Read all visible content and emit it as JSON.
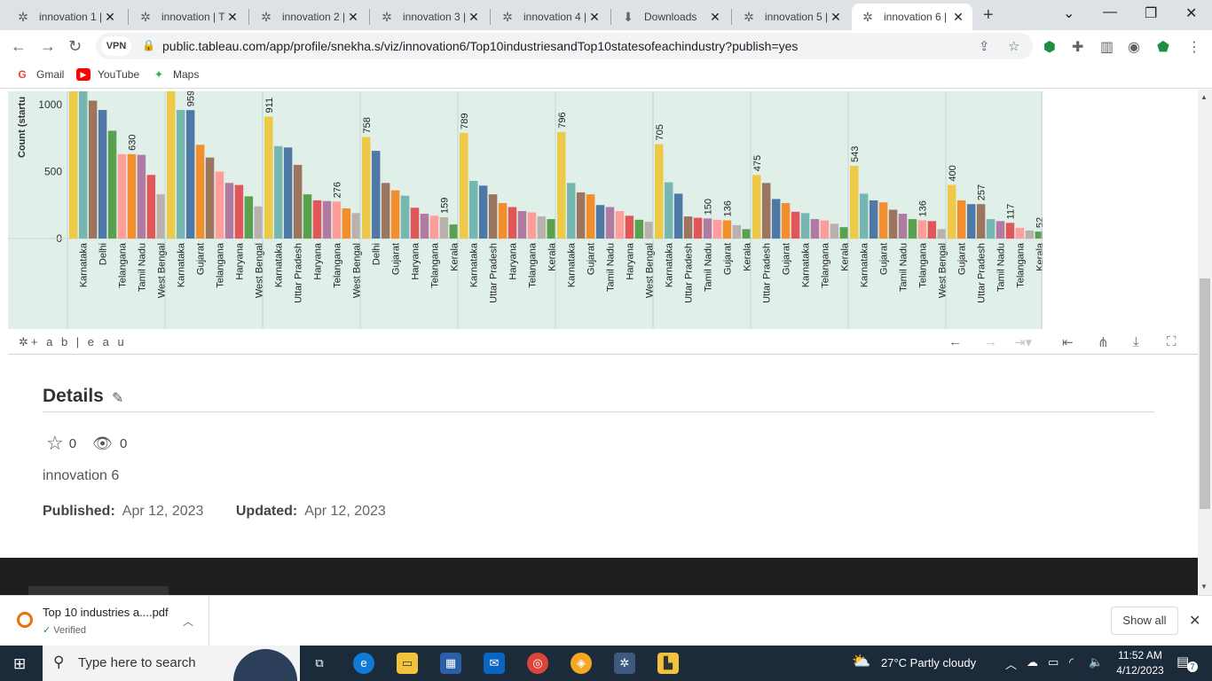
{
  "browser": {
    "tabs": [
      {
        "title": "innovation 1 |",
        "active": false
      },
      {
        "title": "innovation | T",
        "active": false
      },
      {
        "title": "innovation 2 |",
        "active": false
      },
      {
        "title": "innovation 3 |",
        "active": false
      },
      {
        "title": "innovation 4 |",
        "active": false
      },
      {
        "title": "Downloads",
        "active": false
      },
      {
        "title": "innovation 5 |",
        "active": false
      },
      {
        "title": "innovation 6 |",
        "active": true
      }
    ],
    "vpn_label": "VPN",
    "url": "public.tableau.com/app/profile/snekha.s/viz/innovation6/Top10industriesandTop10statesofeachindustry?publish=yes",
    "bookmarks": [
      "Gmail",
      "YouTube",
      "Maps"
    ]
  },
  "chart_data": {
    "type": "bar",
    "ylabel": "Count (startu",
    "yticks": [
      0,
      500,
      1000
    ],
    "ylim": [
      0,
      1100
    ],
    "panels": [
      {
        "bars": [
          {
            "state": "",
            "value": 1150,
            "color": "#edc948",
            "label": ""
          },
          {
            "state": "Karnataka",
            "value": 1100,
            "color": "#76b7b2",
            "label": ""
          },
          {
            "state": "",
            "value": 1030,
            "color": "#9c755f",
            "label": ""
          },
          {
            "state": "Delhi",
            "value": 960,
            "color": "#4e79a7",
            "label": ""
          },
          {
            "state": "",
            "value": 805,
            "color": "#59a14f",
            "label": ""
          },
          {
            "state": "Telangana",
            "value": 630,
            "color": "#ff9d9a",
            "label": ""
          },
          {
            "state": "",
            "value": 630,
            "color": "#f28e2b",
            "label": "630"
          },
          {
            "state": "Tamil Nadu",
            "value": 625,
            "color": "#b07aa1",
            "label": ""
          },
          {
            "state": "",
            "value": 475,
            "color": "#e15759",
            "label": ""
          },
          {
            "state": "West Bengal",
            "value": 330,
            "color": "#bab0ac",
            "label": ""
          }
        ]
      },
      {
        "bars": [
          {
            "state": "",
            "value": 1150,
            "color": "#edc948",
            "label": ""
          },
          {
            "state": "Karnataka",
            "value": 960,
            "color": "#76b7b2",
            "label": ""
          },
          {
            "state": "",
            "value": 959,
            "color": "#4e79a7",
            "label": "959"
          },
          {
            "state": "Gujarat",
            "value": 700,
            "color": "#f28e2b",
            "label": ""
          },
          {
            "state": "",
            "value": 605,
            "color": "#9c755f",
            "label": ""
          },
          {
            "state": "Telangana",
            "value": 500,
            "color": "#ff9d9a",
            "label": ""
          },
          {
            "state": "",
            "value": 415,
            "color": "#b07aa1",
            "label": ""
          },
          {
            "state": "Haryana",
            "value": 400,
            "color": "#e15759",
            "label": ""
          },
          {
            "state": "",
            "value": 315,
            "color": "#59a14f",
            "label": ""
          },
          {
            "state": "West Bengal",
            "value": 240,
            "color": "#bab0ac",
            "label": ""
          }
        ]
      },
      {
        "bars": [
          {
            "state": "",
            "value": 911,
            "color": "#edc948",
            "label": "911"
          },
          {
            "state": "Karnataka",
            "value": 690,
            "color": "#76b7b2",
            "label": ""
          },
          {
            "state": "",
            "value": 680,
            "color": "#4e79a7",
            "label": ""
          },
          {
            "state": "Uttar Pradesh",
            "value": 550,
            "color": "#9c755f",
            "label": ""
          },
          {
            "state": "",
            "value": 330,
            "color": "#59a14f",
            "label": ""
          },
          {
            "state": "Haryana",
            "value": 285,
            "color": "#e15759",
            "label": ""
          },
          {
            "state": "",
            "value": 280,
            "color": "#b07aa1",
            "label": ""
          },
          {
            "state": "Telangana",
            "value": 276,
            "color": "#ff9d9a",
            "label": "276"
          },
          {
            "state": "",
            "value": 225,
            "color": "#f28e2b",
            "label": ""
          },
          {
            "state": "West Bengal",
            "value": 190,
            "color": "#bab0ac",
            "label": ""
          }
        ]
      },
      {
        "bars": [
          {
            "state": "",
            "value": 758,
            "color": "#edc948",
            "label": "758"
          },
          {
            "state": "Delhi",
            "value": 655,
            "color": "#4e79a7",
            "label": ""
          },
          {
            "state": "",
            "value": 415,
            "color": "#9c755f",
            "label": ""
          },
          {
            "state": "Gujarat",
            "value": 360,
            "color": "#f28e2b",
            "label": ""
          },
          {
            "state": "",
            "value": 320,
            "color": "#76b7b2",
            "label": ""
          },
          {
            "state": "Haryana",
            "value": 230,
            "color": "#e15759",
            "label": ""
          },
          {
            "state": "",
            "value": 185,
            "color": "#b07aa1",
            "label": ""
          },
          {
            "state": "Telangana",
            "value": 170,
            "color": "#ff9d9a",
            "label": ""
          },
          {
            "state": "",
            "value": 159,
            "color": "#bab0ac",
            "label": "159"
          },
          {
            "state": "Kerala",
            "value": 105,
            "color": "#59a14f",
            "label": ""
          }
        ]
      },
      {
        "bars": [
          {
            "state": "",
            "value": 789,
            "color": "#edc948",
            "label": "789"
          },
          {
            "state": "Karnataka",
            "value": 430,
            "color": "#76b7b2",
            "label": ""
          },
          {
            "state": "",
            "value": 395,
            "color": "#4e79a7",
            "label": ""
          },
          {
            "state": "Uttar Pradesh",
            "value": 330,
            "color": "#9c755f",
            "label": ""
          },
          {
            "state": "",
            "value": 265,
            "color": "#f28e2b",
            "label": ""
          },
          {
            "state": "Haryana",
            "value": 235,
            "color": "#e15759",
            "label": ""
          },
          {
            "state": "",
            "value": 205,
            "color": "#b07aa1",
            "label": ""
          },
          {
            "state": "Telangana",
            "value": 195,
            "color": "#ff9d9a",
            "label": ""
          },
          {
            "state": "",
            "value": 165,
            "color": "#bab0ac",
            "label": ""
          },
          {
            "state": "Kerala",
            "value": 145,
            "color": "#59a14f",
            "label": ""
          }
        ]
      },
      {
        "bars": [
          {
            "state": "",
            "value": 796,
            "color": "#edc948",
            "label": "796"
          },
          {
            "state": "Karnataka",
            "value": 415,
            "color": "#76b7b2",
            "label": ""
          },
          {
            "state": "",
            "value": 345,
            "color": "#9c755f",
            "label": ""
          },
          {
            "state": "Gujarat",
            "value": 330,
            "color": "#f28e2b",
            "label": ""
          },
          {
            "state": "",
            "value": 250,
            "color": "#4e79a7",
            "label": ""
          },
          {
            "state": "Tamil Nadu",
            "value": 235,
            "color": "#b07aa1",
            "label": ""
          },
          {
            "state": "",
            "value": 205,
            "color": "#ff9d9a",
            "label": ""
          },
          {
            "state": "Haryana",
            "value": 170,
            "color": "#e15759",
            "label": ""
          },
          {
            "state": "",
            "value": 140,
            "color": "#59a14f",
            "label": ""
          },
          {
            "state": "West Bengal",
            "value": 125,
            "color": "#bab0ac",
            "label": ""
          }
        ]
      },
      {
        "bars": [
          {
            "state": "",
            "value": 705,
            "color": "#edc948",
            "label": "705"
          },
          {
            "state": "Karnataka",
            "value": 420,
            "color": "#76b7b2",
            "label": ""
          },
          {
            "state": "",
            "value": 335,
            "color": "#4e79a7",
            "label": ""
          },
          {
            "state": "Uttar Pradesh",
            "value": 165,
            "color": "#9c755f",
            "label": ""
          },
          {
            "state": "",
            "value": 155,
            "color": "#e15759",
            "label": ""
          },
          {
            "state": "Tamil Nadu",
            "value": 150,
            "color": "#b07aa1",
            "label": "150"
          },
          {
            "state": "",
            "value": 140,
            "color": "#ff9d9a",
            "label": ""
          },
          {
            "state": "Gujarat",
            "value": 136,
            "color": "#f28e2b",
            "label": "136"
          },
          {
            "state": "",
            "value": 100,
            "color": "#bab0ac",
            "label": ""
          },
          {
            "state": "Kerala",
            "value": 70,
            "color": "#59a14f",
            "label": ""
          }
        ]
      },
      {
        "bars": [
          {
            "state": "",
            "value": 475,
            "color": "#edc948",
            "label": "475"
          },
          {
            "state": "Uttar Pradesh",
            "value": 415,
            "color": "#9c755f",
            "label": ""
          },
          {
            "state": "",
            "value": 295,
            "color": "#4e79a7",
            "label": ""
          },
          {
            "state": "Gujarat",
            "value": 265,
            "color": "#f28e2b",
            "label": ""
          },
          {
            "state": "",
            "value": 200,
            "color": "#e15759",
            "label": ""
          },
          {
            "state": "Karnataka",
            "value": 190,
            "color": "#76b7b2",
            "label": ""
          },
          {
            "state": "",
            "value": 145,
            "color": "#b07aa1",
            "label": ""
          },
          {
            "state": "Telangana",
            "value": 135,
            "color": "#ff9d9a",
            "label": ""
          },
          {
            "state": "",
            "value": 110,
            "color": "#bab0ac",
            "label": ""
          },
          {
            "state": "Kerala",
            "value": 85,
            "color": "#59a14f",
            "label": ""
          }
        ]
      },
      {
        "bars": [
          {
            "state": "",
            "value": 543,
            "color": "#edc948",
            "label": "543"
          },
          {
            "state": "Karnataka",
            "value": 335,
            "color": "#76b7b2",
            "label": ""
          },
          {
            "state": "",
            "value": 285,
            "color": "#4e79a7",
            "label": ""
          },
          {
            "state": "Gujarat",
            "value": 270,
            "color": "#f28e2b",
            "label": ""
          },
          {
            "state": "",
            "value": 215,
            "color": "#9c755f",
            "label": ""
          },
          {
            "state": "Tamil Nadu",
            "value": 185,
            "color": "#b07aa1",
            "label": ""
          },
          {
            "state": "",
            "value": 145,
            "color": "#59a14f",
            "label": ""
          },
          {
            "state": "Telangana",
            "value": 136,
            "color": "#ff9d9a",
            "label": "136"
          },
          {
            "state": "",
            "value": 130,
            "color": "#e15759",
            "label": ""
          },
          {
            "state": "West Bengal",
            "value": 70,
            "color": "#bab0ac",
            "label": ""
          }
        ]
      },
      {
        "bars": [
          {
            "state": "",
            "value": 400,
            "color": "#edc948",
            "label": "400"
          },
          {
            "state": "Gujarat",
            "value": 285,
            "color": "#f28e2b",
            "label": ""
          },
          {
            "state": "",
            "value": 257,
            "color": "#4e79a7",
            "label": ""
          },
          {
            "state": "Uttar Pradesh",
            "value": 257,
            "color": "#9c755f",
            "label": "257"
          },
          {
            "state": "",
            "value": 145,
            "color": "#76b7b2",
            "label": ""
          },
          {
            "state": "Tamil Nadu",
            "value": 130,
            "color": "#b07aa1",
            "label": ""
          },
          {
            "state": "",
            "value": 117,
            "color": "#e15759",
            "label": "117"
          },
          {
            "state": "Telangana",
            "value": 80,
            "color": "#ff9d9a",
            "label": ""
          },
          {
            "state": "",
            "value": 60,
            "color": "#bab0ac",
            "label": ""
          },
          {
            "state": "Kerala",
            "value": 52,
            "color": "#59a14f",
            "label": "52"
          }
        ]
      }
    ]
  },
  "tableau": {
    "logo": "+ a b | e a u"
  },
  "details": {
    "heading": "Details",
    "favorites": "0",
    "views": "0",
    "workbook_name": "innovation 6",
    "published_label": "Published:",
    "published_date": "Apr 12, 2023",
    "updated_label": "Updated:",
    "updated_date": "Apr 12, 2023"
  },
  "download": {
    "file": "Top 10 industries a....pdf",
    "status": "Verified",
    "show_all": "Show all"
  },
  "taskbar": {
    "search_placeholder": "Type here to search",
    "weather": "27°C  Partly cloudy",
    "time": "11:52 AM",
    "date": "4/12/2023",
    "notifications": "7"
  }
}
